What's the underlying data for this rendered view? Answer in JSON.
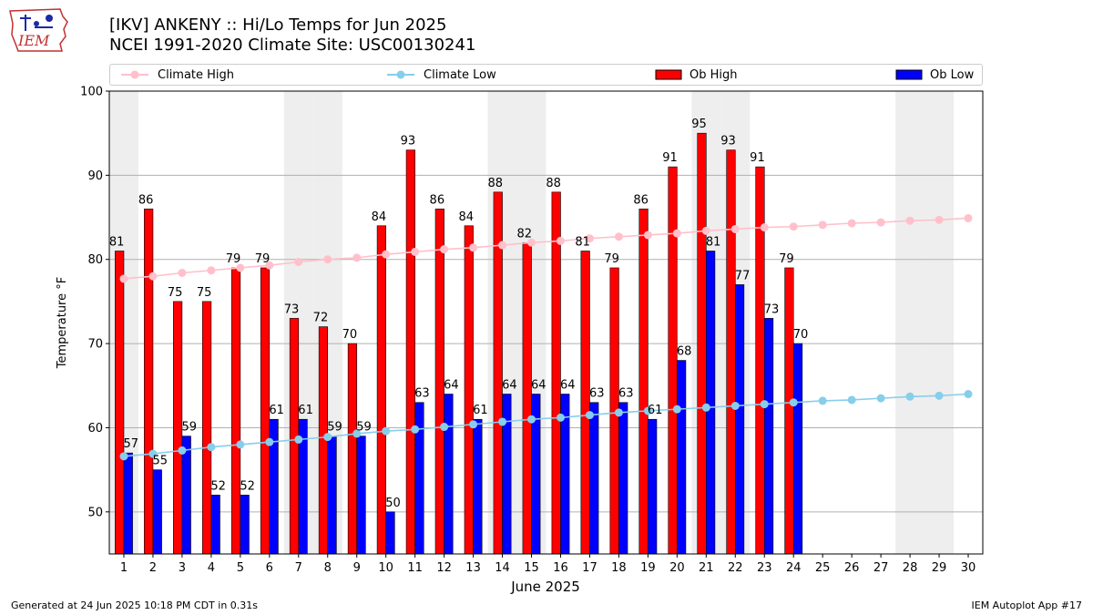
{
  "logo": {
    "text": "IEM"
  },
  "titles": {
    "line1": "[IKV] ANKENY :: Hi/Lo Temps for Jun 2025",
    "line2": "NCEI 1991-2020 Climate Site: USC00130241"
  },
  "footer": {
    "left": "Generated at 24 Jun 2025 10:18 PM CDT in 0.31s",
    "right": "IEM Autoplot App #17"
  },
  "colors": {
    "ob_high": "#ff0000",
    "ob_low": "#0000ff",
    "climate_high": "#ffc0cb",
    "climate_low": "#87ceeb",
    "weekend_band": "#eeeeee",
    "grid": "#b0b0b0"
  },
  "chart_data": {
    "type": "bar",
    "xlabel": "June 2025",
    "ylabel": "Temperature °F",
    "ylim": [
      45,
      100
    ],
    "yticks": [
      50,
      60,
      70,
      80,
      90,
      100
    ],
    "grid": "y",
    "legend_placement": "top",
    "categories": [
      "1",
      "2",
      "3",
      "4",
      "5",
      "6",
      "7",
      "8",
      "9",
      "10",
      "11",
      "12",
      "13",
      "14",
      "15",
      "16",
      "17",
      "18",
      "19",
      "20",
      "21",
      "22",
      "23",
      "24",
      "25",
      "26",
      "27",
      "28",
      "29",
      "30"
    ],
    "shaded_days": [
      1,
      7,
      8,
      14,
      15,
      21,
      22,
      28,
      29
    ],
    "series": [
      {
        "name": "Climate High",
        "kind": "line",
        "values": [
          77.7,
          78.0,
          78.4,
          78.7,
          79.0,
          79.3,
          79.7,
          80.0,
          80.2,
          80.6,
          80.9,
          81.2,
          81.4,
          81.7,
          82.0,
          82.2,
          82.5,
          82.7,
          82.9,
          83.1,
          83.4,
          83.6,
          83.8,
          83.9,
          84.1,
          84.3,
          84.4,
          84.6,
          84.7,
          84.9
        ]
      },
      {
        "name": "Climate Low",
        "kind": "line",
        "values": [
          56.6,
          56.9,
          57.3,
          57.7,
          58.0,
          58.3,
          58.6,
          58.9,
          59.3,
          59.6,
          59.8,
          60.1,
          60.4,
          60.7,
          61.0,
          61.2,
          61.5,
          61.8,
          62.0,
          62.2,
          62.4,
          62.6,
          62.8,
          63.0,
          63.2,
          63.3,
          63.5,
          63.7,
          63.8,
          64.0
        ]
      },
      {
        "name": "Ob High",
        "kind": "bar",
        "values": [
          81,
          86,
          75,
          75,
          79,
          79,
          73,
          72,
          70,
          84,
          93,
          86,
          84,
          88,
          82,
          88,
          81,
          79,
          86,
          91,
          95,
          93,
          91,
          79,
          null,
          null,
          null,
          null,
          null,
          null
        ]
      },
      {
        "name": "Ob Low",
        "kind": "bar",
        "values": [
          57,
          55,
          59,
          52,
          52,
          61,
          61,
          59,
          59,
          50,
          63,
          64,
          61,
          64,
          64,
          64,
          63,
          63,
          61,
          68,
          81,
          77,
          73,
          70,
          null,
          null,
          null,
          null,
          null,
          null
        ]
      }
    ]
  }
}
